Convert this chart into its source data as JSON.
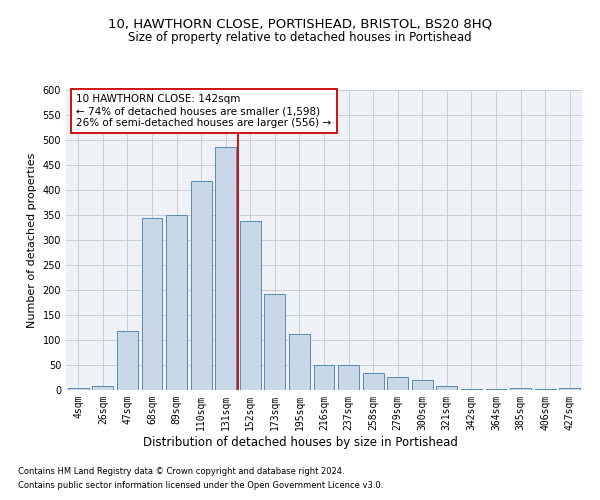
{
  "title": "10, HAWTHORN CLOSE, PORTISHEAD, BRISTOL, BS20 8HQ",
  "subtitle": "Size of property relative to detached houses in Portishead",
  "xlabel": "Distribution of detached houses by size in Portishead",
  "ylabel": "Number of detached properties",
  "categories": [
    "4sqm",
    "26sqm",
    "47sqm",
    "68sqm",
    "89sqm",
    "110sqm",
    "131sqm",
    "152sqm",
    "173sqm",
    "195sqm",
    "216sqm",
    "237sqm",
    "258sqm",
    "279sqm",
    "300sqm",
    "321sqm",
    "342sqm",
    "364sqm",
    "385sqm",
    "406sqm",
    "427sqm"
  ],
  "values": [
    5,
    8,
    118,
    345,
    350,
    418,
    487,
    338,
    193,
    112,
    50,
    50,
    35,
    27,
    20,
    8,
    3,
    3,
    5,
    3,
    4
  ],
  "bar_color": "#c8d8e8",
  "bar_edge_color": "#5a8ab0",
  "vline_x_index": 6,
  "vline_color": "#cc0000",
  "annotation_text": "10 HAWTHORN CLOSE: 142sqm\n← 74% of detached houses are smaller (1,598)\n26% of semi-detached houses are larger (556) →",
  "annotation_box_color": "#ffffff",
  "annotation_box_edge": "#cc0000",
  "grid_color": "#c0c8d0",
  "plot_bg_color": "#eef2f7",
  "footnote1": "Contains HM Land Registry data © Crown copyright and database right 2024.",
  "footnote2": "Contains public sector information licensed under the Open Government Licence v3.0.",
  "ylim": [
    0,
    600
  ],
  "yticks": [
    0,
    50,
    100,
    150,
    200,
    250,
    300,
    350,
    400,
    450,
    500,
    550,
    600
  ],
  "title_fontsize": 9.5,
  "subtitle_fontsize": 8.5,
  "xlabel_fontsize": 8.5,
  "ylabel_fontsize": 8,
  "tick_fontsize": 7,
  "annot_fontsize": 7.5,
  "footnote_fontsize": 6
}
